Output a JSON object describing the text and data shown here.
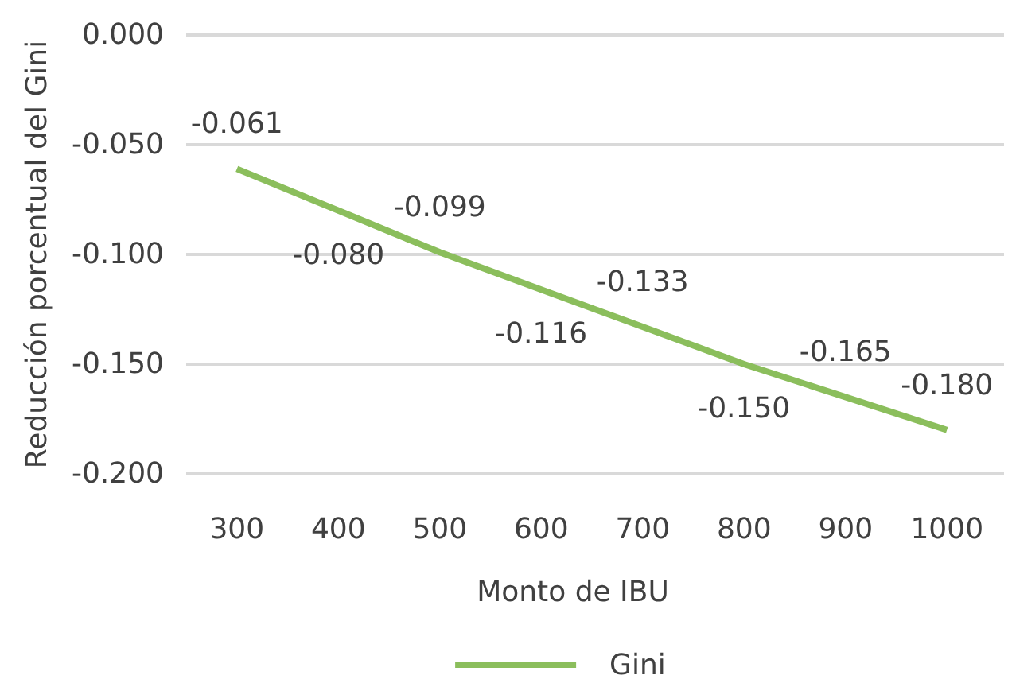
{
  "chart_data": {
    "type": "line",
    "xlabel": "Monto de IBU",
    "ylabel": "Reducción porcentual del Gini",
    "categories": [
      "300",
      "400",
      "500",
      "600",
      "700",
      "800",
      "900",
      "1000"
    ],
    "series": [
      {
        "name": "Gini",
        "color": "#8bbe5c",
        "values": [
          -0.061,
          -0.08,
          -0.099,
          -0.116,
          -0.133,
          -0.15,
          -0.165,
          -0.18
        ],
        "value_labels": [
          "-0.061",
          "-0.080",
          "-0.099",
          "-0.116",
          "-0.133",
          "-0.150",
          "-0.165",
          "-0.180"
        ]
      }
    ],
    "ylim": [
      -0.2,
      0
    ],
    "yticks": [
      {
        "value": -0.2,
        "label": "-0.200"
      },
      {
        "value": -0.15,
        "label": "-0.150"
      },
      {
        "value": -0.1,
        "label": "-0.100"
      },
      {
        "value": -0.05,
        "label": "-0.050"
      },
      {
        "value": 0,
        "label": "0.000"
      }
    ],
    "grid": "y",
    "legend": "bottom"
  }
}
